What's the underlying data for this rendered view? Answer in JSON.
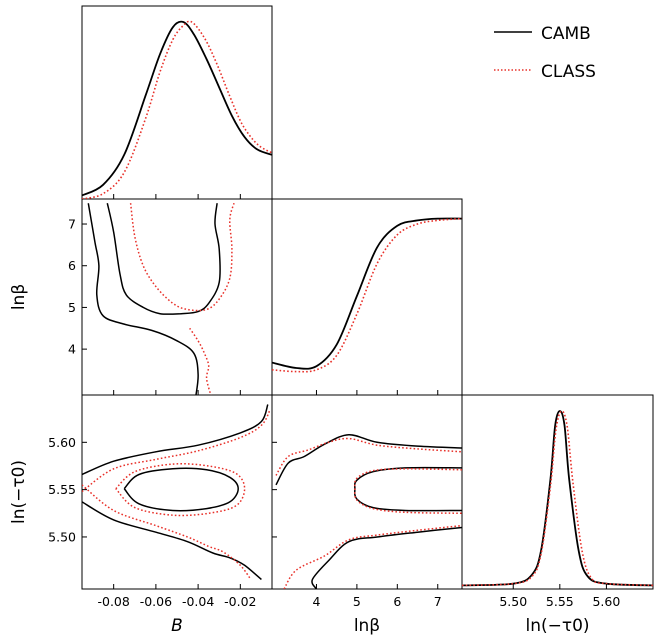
{
  "chart_data": {
    "type": "corner",
    "legend": {
      "placement": "top-right",
      "entries": [
        {
          "name": "CAMB",
          "color": "#000000",
          "style": "solid"
        },
        {
          "name": "CLASS",
          "color": "#e8312a",
          "style": "dotted"
        }
      ]
    },
    "parameters": [
      {
        "key": "B",
        "label": "B",
        "range": [
          -0.095,
          -0.005
        ],
        "ticks": [
          "-0.08",
          "-0.06",
          "-0.04",
          "-0.02"
        ],
        "tick_values": [
          -0.08,
          -0.06,
          -0.04,
          -0.02
        ]
      },
      {
        "key": "lnbeta",
        "label": "lnβ",
        "range": [
          2.9,
          7.6
        ],
        "ticks": [
          "4",
          "5",
          "6",
          "7"
        ],
        "tick_values": [
          4,
          5,
          6,
          7
        ]
      },
      {
        "key": "lntau",
        "label": "ln(−τ0)",
        "range": [
          5.445,
          5.65
        ],
        "ticks": [
          "5.50",
          "5.55",
          "5.60"
        ],
        "tick_values": [
          5.5,
          5.55,
          5.6
        ]
      }
    ],
    "marginals": [
      {
        "param": "B",
        "series": [
          {
            "name": "CAMB",
            "x": [
              -0.095,
              -0.085,
              -0.075,
              -0.065,
              -0.058,
              -0.052,
              -0.047,
              -0.042,
              -0.036,
              -0.03,
              -0.024,
              -0.018,
              -0.012,
              -0.005
            ],
            "y": [
              0.02,
              0.08,
              0.25,
              0.58,
              0.82,
              0.97,
              1.0,
              0.93,
              0.79,
              0.63,
              0.47,
              0.35,
              0.28,
              0.25
            ]
          },
          {
            "name": "CLASS",
            "x": [
              -0.095,
              -0.085,
              -0.075,
              -0.065,
              -0.058,
              -0.052,
              -0.047,
              -0.043,
              -0.037,
              -0.031,
              -0.025,
              -0.019,
              -0.012,
              -0.005
            ],
            "y": [
              0.0,
              0.03,
              0.15,
              0.45,
              0.72,
              0.9,
              0.98,
              1.0,
              0.91,
              0.76,
              0.58,
              0.42,
              0.31,
              0.26
            ]
          }
        ]
      },
      {
        "param": "lnbeta",
        "series": [
          {
            "name": "CAMB",
            "x": [
              2.9,
              3.5,
              4.0,
              4.5,
              5.0,
              5.5,
              6.0,
              6.5,
              7.0,
              7.6
            ],
            "y": [
              0.18,
              0.15,
              0.16,
              0.28,
              0.55,
              0.82,
              0.94,
              0.97,
              0.98,
              0.98
            ]
          },
          {
            "name": "CLASS",
            "x": [
              2.9,
              3.5,
              4.0,
              4.5,
              5.0,
              5.5,
              6.0,
              6.5,
              7.0,
              7.6
            ],
            "y": [
              0.14,
              0.13,
              0.14,
              0.22,
              0.45,
              0.73,
              0.89,
              0.95,
              0.97,
              0.98
            ]
          }
        ]
      },
      {
        "param": "lntau",
        "series": [
          {
            "name": "CAMB",
            "x": [
              5.445,
              5.5,
              5.52,
              5.53,
              5.54,
              5.545,
              5.55,
              5.555,
              5.56,
              5.57,
              5.58,
              5.6,
              5.65
            ],
            "y": [
              0.02,
              0.03,
              0.08,
              0.22,
              0.62,
              0.92,
              1.0,
              0.92,
              0.62,
              0.22,
              0.07,
              0.03,
              0.02
            ]
          },
          {
            "name": "CLASS",
            "x": [
              5.445,
              5.5,
              5.52,
              5.53,
              5.54,
              5.546,
              5.552,
              5.558,
              5.564,
              5.574,
              5.584,
              5.6,
              5.65
            ],
            "y": [
              0.02,
              0.03,
              0.07,
              0.2,
              0.58,
              0.9,
              1.0,
              0.91,
              0.6,
              0.21,
              0.06,
              0.03,
              0.02
            ]
          }
        ]
      }
    ],
    "contours": [
      {
        "x_param": "B",
        "y_param": "lnbeta",
        "series": [
          {
            "name": "CAMB",
            "level": "95%",
            "points": [
              [
                -0.092,
                7.5
              ],
              [
                -0.089,
                6.6
              ],
              [
                -0.087,
                6.0
              ],
              [
                -0.088,
                5.3
              ],
              [
                -0.085,
                4.8
              ],
              [
                -0.075,
                4.6
              ],
              [
                -0.062,
                4.45
              ],
              [
                -0.05,
                4.2
              ],
              [
                -0.042,
                3.9
              ],
              [
                -0.04,
                3.4
              ],
              [
                -0.041,
                2.9
              ]
            ]
          },
          {
            "name": "CAMB",
            "level": "68%",
            "points": [
              [
                -0.083,
                7.5
              ],
              [
                -0.08,
                6.8
              ],
              [
                -0.077,
                5.8
              ],
              [
                -0.074,
                5.3
              ],
              [
                -0.066,
                5.0
              ],
              [
                -0.058,
                4.85
              ],
              [
                -0.048,
                4.85
              ],
              [
                -0.04,
                4.9
              ],
              [
                -0.035,
                5.1
              ],
              [
                -0.03,
                5.6
              ],
              [
                -0.03,
                6.4
              ],
              [
                -0.032,
                7.0
              ],
              [
                -0.031,
                7.5
              ]
            ]
          },
          {
            "name": "CLASS",
            "level": "95%",
            "points": [
              [
                -0.072,
                7.5
              ],
              [
                -0.07,
                6.7
              ],
              [
                -0.066,
                6.0
              ],
              [
                -0.06,
                5.5
              ],
              [
                -0.052,
                5.1
              ],
              [
                -0.045,
                4.95
              ],
              [
                -0.036,
                4.95
              ],
              [
                -0.03,
                5.2
              ],
              [
                -0.025,
                5.7
              ],
              [
                -0.024,
                6.4
              ],
              [
                -0.025,
                7.1
              ],
              [
                -0.023,
                7.5
              ]
            ]
          },
          {
            "name": "CLASS",
            "level": "95% tail",
            "points": [
              [
                -0.044,
                4.5
              ],
              [
                -0.04,
                4.2
              ],
              [
                -0.037,
                3.9
              ],
              [
                -0.035,
                3.6
              ],
              [
                -0.036,
                3.3
              ],
              [
                -0.034,
                2.9
              ]
            ]
          }
        ]
      },
      {
        "x_param": "B",
        "y_param": "lntau",
        "series": [
          {
            "name": "CAMB",
            "level": "68%",
            "points": [
              [
                -0.075,
                5.551
              ],
              [
                -0.068,
                5.566
              ],
              [
                -0.052,
                5.572
              ],
              [
                -0.036,
                5.571
              ],
              [
                -0.025,
                5.563
              ],
              [
                -0.021,
                5.551
              ],
              [
                -0.025,
                5.537
              ],
              [
                -0.036,
                5.53
              ],
              [
                -0.052,
                5.528
              ],
              [
                -0.068,
                5.535
              ],
              [
                -0.075,
                5.551
              ]
            ]
          },
          {
            "name": "CAMB",
            "level": "95%",
            "points": [
              [
                -0.095,
                5.566
              ],
              [
                -0.08,
                5.58
              ],
              [
                -0.06,
                5.59
              ],
              [
                -0.04,
                5.597
              ],
              [
                -0.02,
                5.61
              ],
              [
                -0.01,
                5.622
              ],
              [
                -0.007,
                5.64
              ]
            ]
          },
          {
            "name": "CAMB",
            "level": "95% lower",
            "points": [
              [
                -0.095,
                5.537
              ],
              [
                -0.08,
                5.518
              ],
              [
                -0.06,
                5.505
              ],
              [
                -0.045,
                5.495
              ],
              [
                -0.033,
                5.483
              ],
              [
                -0.025,
                5.478
              ],
              [
                -0.018,
                5.47
              ],
              [
                -0.01,
                5.455
              ]
            ]
          },
          {
            "name": "CLASS",
            "level": "68%",
            "points": [
              [
                -0.079,
                5.551
              ],
              [
                -0.07,
                5.569
              ],
              [
                -0.052,
                5.577
              ],
              [
                -0.035,
                5.575
              ],
              [
                -0.022,
                5.567
              ],
              [
                -0.018,
                5.551
              ],
              [
                -0.022,
                5.533
              ],
              [
                -0.035,
                5.525
              ],
              [
                -0.052,
                5.523
              ],
              [
                -0.07,
                5.531
              ],
              [
                -0.079,
                5.551
              ]
            ]
          },
          {
            "name": "CLASS",
            "level": "95%",
            "points": [
              [
                -0.095,
                5.548
              ],
              [
                -0.08,
                5.572
              ],
              [
                -0.06,
                5.582
              ],
              [
                -0.04,
                5.591
              ],
              [
                -0.02,
                5.605
              ],
              [
                -0.01,
                5.618
              ],
              [
                -0.006,
                5.634
              ]
            ]
          },
          {
            "name": "CLASS",
            "level": "95% lower",
            "points": [
              [
                -0.095,
                5.555
              ],
              [
                -0.08,
                5.528
              ],
              [
                -0.06,
                5.512
              ],
              [
                -0.045,
                5.5
              ],
              [
                -0.035,
                5.49
              ],
              [
                -0.028,
                5.484
              ],
              [
                -0.02,
                5.47
              ],
              [
                -0.015,
                5.455
              ]
            ]
          }
        ]
      },
      {
        "x_param": "lnbeta",
        "y_param": "lntau",
        "series": [
          {
            "name": "CAMB",
            "level": "68%",
            "points": [
              [
                7.6,
                5.573
              ],
              [
                6.2,
                5.573
              ],
              [
                5.4,
                5.569
              ],
              [
                5.0,
                5.56
              ],
              [
                4.95,
                5.551
              ],
              [
                5.0,
                5.54
              ],
              [
                5.4,
                5.531
              ],
              [
                6.2,
                5.528
              ],
              [
                7.6,
                5.528
              ]
            ]
          },
          {
            "name": "CAMB",
            "level": "95% upper",
            "points": [
              [
                3.0,
                5.555
              ],
              [
                3.3,
                5.578
              ],
              [
                3.7,
                5.585
              ],
              [
                4.2,
                5.598
              ],
              [
                4.8,
                5.608
              ],
              [
                5.5,
                5.6
              ],
              [
                6.5,
                5.596
              ],
              [
                7.6,
                5.594
              ]
            ]
          },
          {
            "name": "CAMB",
            "level": "95% lower",
            "points": [
              [
                4.0,
                5.445
              ],
              [
                3.9,
                5.455
              ],
              [
                4.3,
                5.475
              ],
              [
                4.8,
                5.495
              ],
              [
                5.5,
                5.5
              ],
              [
                6.5,
                5.505
              ],
              [
                7.6,
                5.51
              ]
            ]
          },
          {
            "name": "CLASS",
            "level": "68%",
            "points": [
              [
                7.6,
                5.571
              ],
              [
                6.2,
                5.572
              ],
              [
                5.4,
                5.57
              ],
              [
                5.0,
                5.562
              ],
              [
                4.95,
                5.551
              ],
              [
                5.0,
                5.539
              ],
              [
                5.4,
                5.53
              ],
              [
                6.2,
                5.526
              ],
              [
                7.6,
                5.525
              ]
            ]
          },
          {
            "name": "CLASS",
            "level": "95% upper",
            "points": [
              [
                3.0,
                5.565
              ],
              [
                3.3,
                5.585
              ],
              [
                3.8,
                5.592
              ],
              [
                4.3,
                5.6
              ],
              [
                4.8,
                5.604
              ],
              [
                5.5,
                5.597
              ],
              [
                6.5,
                5.593
              ],
              [
                7.6,
                5.59
              ]
            ]
          },
          {
            "name": "CLASS",
            "level": "95% lower",
            "points": [
              [
                3.2,
                5.445
              ],
              [
                3.5,
                5.465
              ],
              [
                4.2,
                5.48
              ],
              [
                4.8,
                5.497
              ],
              [
                5.5,
                5.502
              ],
              [
                6.5,
                5.507
              ],
              [
                7.6,
                5.512
              ]
            ]
          }
        ]
      }
    ]
  }
}
